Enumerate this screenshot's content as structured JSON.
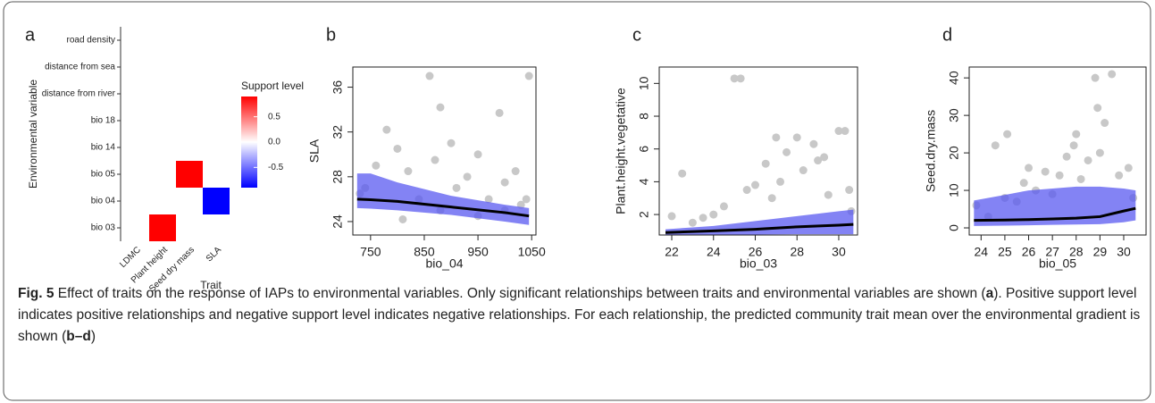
{
  "chart_data": [
    {
      "type": "heatmap",
      "panel_label": "a",
      "x_label": "Trait",
      "y_label": "Environmental variable",
      "x_categories": [
        "LDMC",
        "Plant height",
        "Seed dry mass",
        "SLA"
      ],
      "y_categories": [
        "road density",
        "distance from sea",
        "distance from river",
        "bio 18",
        "bio 14",
        "bio 05",
        "bio 04",
        "bio 03"
      ],
      "values": [
        [
          null,
          null,
          null,
          null
        ],
        [
          null,
          null,
          null,
          null
        ],
        [
          null,
          null,
          null,
          null
        ],
        [
          null,
          null,
          null,
          null
        ],
        [
          null,
          null,
          null,
          null
        ],
        [
          null,
          null,
          0.9,
          null
        ],
        [
          null,
          null,
          null,
          -0.9
        ],
        [
          null,
          0.9,
          null,
          null
        ]
      ],
      "colorbar": {
        "title": "Support level",
        "lim": [
          -0.9,
          0.9
        ],
        "ticks": [
          0.5,
          {
            "value": 0,
            "label": "0.0"
          },
          -0.5
        ],
        "colors": [
          "#0000ff",
          "#ffffff",
          "#ff0000"
        ]
      }
    },
    {
      "type": "scatter",
      "panel_label": "b",
      "x_label": "bio_04",
      "y_label": "SLA",
      "xlim": [
        717,
        1058
      ],
      "ylim": [
        22.8,
        37.8
      ],
      "xticks": [
        750,
        850,
        950,
        1050
      ],
      "yticks": [
        24,
        28,
        32,
        36
      ],
      "points": {
        "color": "#c8c8c8",
        "x": [
          740,
          760,
          780,
          800,
          820,
          840,
          860,
          870,
          880,
          900,
          910,
          930,
          950,
          970,
          990,
          1000,
          1020,
          1040,
          1045,
          880,
          1000,
          730,
          810,
          950,
          1030
        ],
        "y": [
          27,
          29,
          32.2,
          30.5,
          28.5,
          26,
          37,
          29.5,
          34.2,
          31,
          27,
          28,
          30,
          26,
          33.7,
          27.5,
          28.5,
          26,
          37,
          25,
          25,
          26.5,
          24.2,
          24.5,
          25.5
        ]
      },
      "fit": {
        "color": "#000000",
        "band_color": "#5a5af0",
        "x": [
          725,
          750,
          800,
          900,
          1000,
          1045
        ],
        "y": [
          26,
          25.95,
          25.8,
          25.3,
          24.8,
          24.5
        ],
        "lower": [
          25.2,
          25.15,
          25,
          24.6,
          24,
          23.7
        ],
        "upper": [
          28.3,
          28.3,
          27.5,
          26.3,
          25.5,
          25.2
        ]
      }
    },
    {
      "type": "scatter",
      "panel_label": "c",
      "x_label": "bio_03",
      "y_label": "Plant.height.vegetative",
      "xlim": [
        21.4,
        30.9
      ],
      "ylim": [
        0.75,
        11
      ],
      "xticks": [
        22,
        24,
        26,
        28,
        30
      ],
      "yticks": [
        2,
        4,
        6,
        8,
        10
      ],
      "points": {
        "color": "#c8c8c8",
        "x": [
          22,
          22.5,
          23,
          24,
          24.5,
          25,
          25.3,
          25.6,
          26,
          26.5,
          27,
          27.2,
          27.5,
          28,
          28.3,
          28.8,
          29,
          29.5,
          30,
          30.3,
          30.5,
          30.6,
          23.5,
          26.8,
          29.3
        ],
        "y": [
          1.9,
          4.5,
          1.5,
          2,
          2.5,
          10.3,
          10.3,
          3.5,
          3.8,
          5.1,
          6.7,
          4,
          5.8,
          6.7,
          4.7,
          6.3,
          5.3,
          3.2,
          7.1,
          7.1,
          3.5,
          2.2,
          1.8,
          3,
          5.5
        ]
      },
      "fit": {
        "color": "#000000",
        "band_color": "#5a5af0",
        "x": [
          21.7,
          24,
          26,
          28,
          30,
          30.7
        ],
        "y": [
          0.9,
          1,
          1.1,
          1.25,
          1.35,
          1.4
        ],
        "lower": [
          0.7,
          0.75,
          0.78,
          0.8,
          0.8,
          0.8
        ],
        "upper": [
          1.1,
          1.3,
          1.6,
          1.9,
          2.2,
          2.3
        ]
      }
    },
    {
      "type": "scatter",
      "panel_label": "d",
      "x_label": "bio_05",
      "y_label": "Seed.dry.mass",
      "xlim": [
        23.5,
        30.94
      ],
      "ylim": [
        -1.9,
        42.9
      ],
      "xticks": [
        24,
        25,
        26,
        27,
        28,
        29,
        30
      ],
      "yticks": [
        0,
        10,
        20,
        30,
        40
      ],
      "points": {
        "color": "#c8c8c8",
        "x": [
          23.8,
          24.3,
          24.6,
          25,
          25.1,
          25.5,
          25.8,
          26,
          26.3,
          26.7,
          27,
          27.3,
          27.6,
          27.9,
          28,
          28.2,
          28.5,
          28.8,
          28.9,
          29,
          29.2,
          29.5,
          29.8,
          30.2,
          30.4
        ],
        "y": [
          6,
          3,
          22,
          8,
          25,
          7,
          12,
          16,
          10,
          15,
          9,
          14,
          19,
          22,
          25,
          13,
          18,
          40,
          32,
          20,
          28,
          41,
          14,
          16,
          8
        ]
      },
      "fit": {
        "color": "#000000",
        "band_color": "#5a5af0",
        "x": [
          23.7,
          25,
          26,
          27,
          28,
          29,
          30,
          30.5
        ],
        "y": [
          2,
          2.1,
          2.2,
          2.4,
          2.6,
          3,
          4.5,
          5.2
        ],
        "lower": [
          0.5,
          0.6,
          0.7,
          0.8,
          0.9,
          1,
          1.5,
          2
        ],
        "upper": [
          7.3,
          8.8,
          10,
          10.5,
          11,
          11,
          10.5,
          10
        ]
      }
    }
  ],
  "caption": {
    "label": "Fig. 5",
    "segments": [
      " Effect of traits on the response of IAPs to environmental variables. Only significant relationships between traits and environmental variables are shown (",
      "a",
      "). Positive support level indicates positive relationships and negative support level indicates negative relationships. For each relationship, the predicted community trait mean over the environmental gradient is shown (",
      "b–d",
      ")"
    ]
  }
}
